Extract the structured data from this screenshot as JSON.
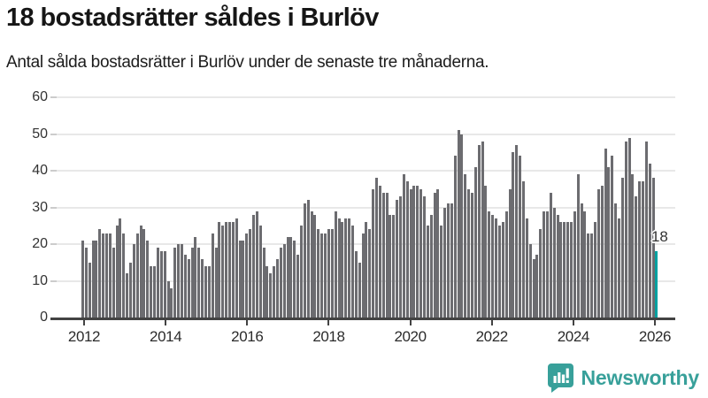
{
  "header": {
    "title": "18 bostadsrätter såldes i Burlöv",
    "subtitle": "Antal sålda bostadsrätter i Burlöv under de senaste tre månaderna."
  },
  "chart_data": {
    "type": "bar",
    "title": "18 bostadsrätter såldes i Burlöv",
    "subtitle": "Antal sålda bostadsrätter i Burlöv under de senaste tre månaderna.",
    "xlabel": "",
    "ylabel": "",
    "frequency": "monthly",
    "x_start": "2012-01",
    "x_end": "2026-01",
    "ylim": [
      0,
      60
    ],
    "yticks": [
      0,
      10,
      20,
      30,
      40,
      50,
      60
    ],
    "xticks": [
      "2012",
      "2014",
      "2016",
      "2018",
      "2020",
      "2022",
      "2024",
      "2026"
    ],
    "grid": true,
    "legend": false,
    "bar_color": "#6c6c70",
    "highlight_color": "#00a1a1",
    "values": [
      21,
      19,
      15,
      21,
      21,
      24,
      23,
      23,
      23,
      19,
      25,
      27,
      23,
      12,
      15,
      20,
      23,
      25,
      24,
      21,
      14,
      14,
      19,
      18,
      18,
      10,
      8,
      19,
      20,
      20,
      17,
      16,
      19,
      22,
      19,
      16,
      14,
      14,
      23,
      19,
      26,
      25,
      26,
      26,
      26,
      27,
      21,
      21,
      23,
      24,
      28,
      29,
      25,
      19,
      14,
      12,
      14,
      16,
      19,
      20,
      22,
      22,
      21,
      17,
      25,
      31,
      32,
      29,
      28,
      24,
      23,
      23,
      24,
      24,
      29,
      27,
      26,
      27,
      27,
      25,
      18,
      15,
      23,
      26,
      24,
      35,
      38,
      36,
      34,
      34,
      28,
      28,
      32,
      33,
      39,
      37,
      35,
      36,
      36,
      35,
      33,
      25,
      28,
      34,
      35,
      25,
      30,
      31,
      31,
      44,
      51,
      50,
      39,
      35,
      34,
      41,
      47,
      48,
      36,
      29,
      28,
      27,
      25,
      26,
      29,
      35,
      45,
      47,
      44,
      37,
      27,
      20,
      16,
      17,
      24,
      29,
      29,
      34,
      30,
      28,
      26,
      26,
      26,
      26,
      29,
      39,
      31,
      29,
      23,
      23,
      26,
      35,
      36,
      46,
      41,
      44,
      31,
      27,
      38,
      48,
      49,
      39,
      33,
      37,
      37,
      48,
      42,
      38,
      18
    ],
    "highlight_index": 168,
    "annotation": {
      "text": "18",
      "attached_to": "last-bar"
    }
  },
  "branding": {
    "logo_text": "Newsworthy",
    "logo_color": "#38a09a",
    "logo_icon": "bar-chart-speech-bubble-icon"
  }
}
